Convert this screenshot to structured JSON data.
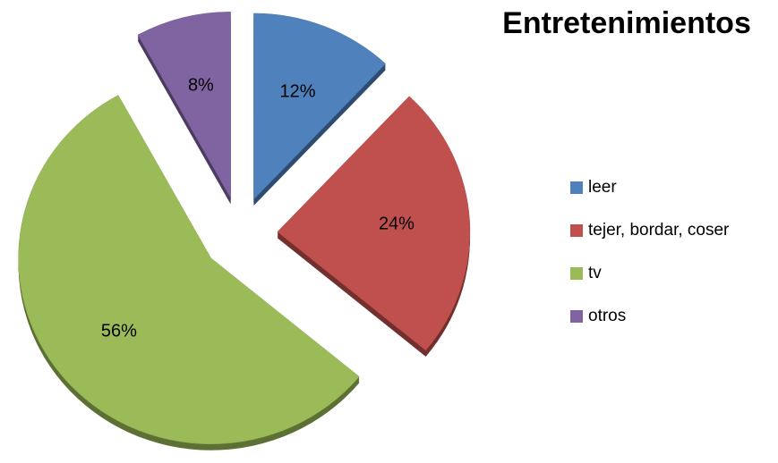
{
  "chart_data": {
    "type": "pie",
    "title": "Entretenimientos",
    "categories": [
      "leer",
      "tejer, bordar, coser",
      "tv",
      "otros"
    ],
    "values": [
      12,
      24,
      56,
      8
    ],
    "value_labels": [
      "12%",
      "24%",
      "56%",
      "8%"
    ],
    "colors": [
      "#4f81bd",
      "#c0504d",
      "#9bbb59",
      "#8064a2"
    ],
    "legend": "right"
  }
}
